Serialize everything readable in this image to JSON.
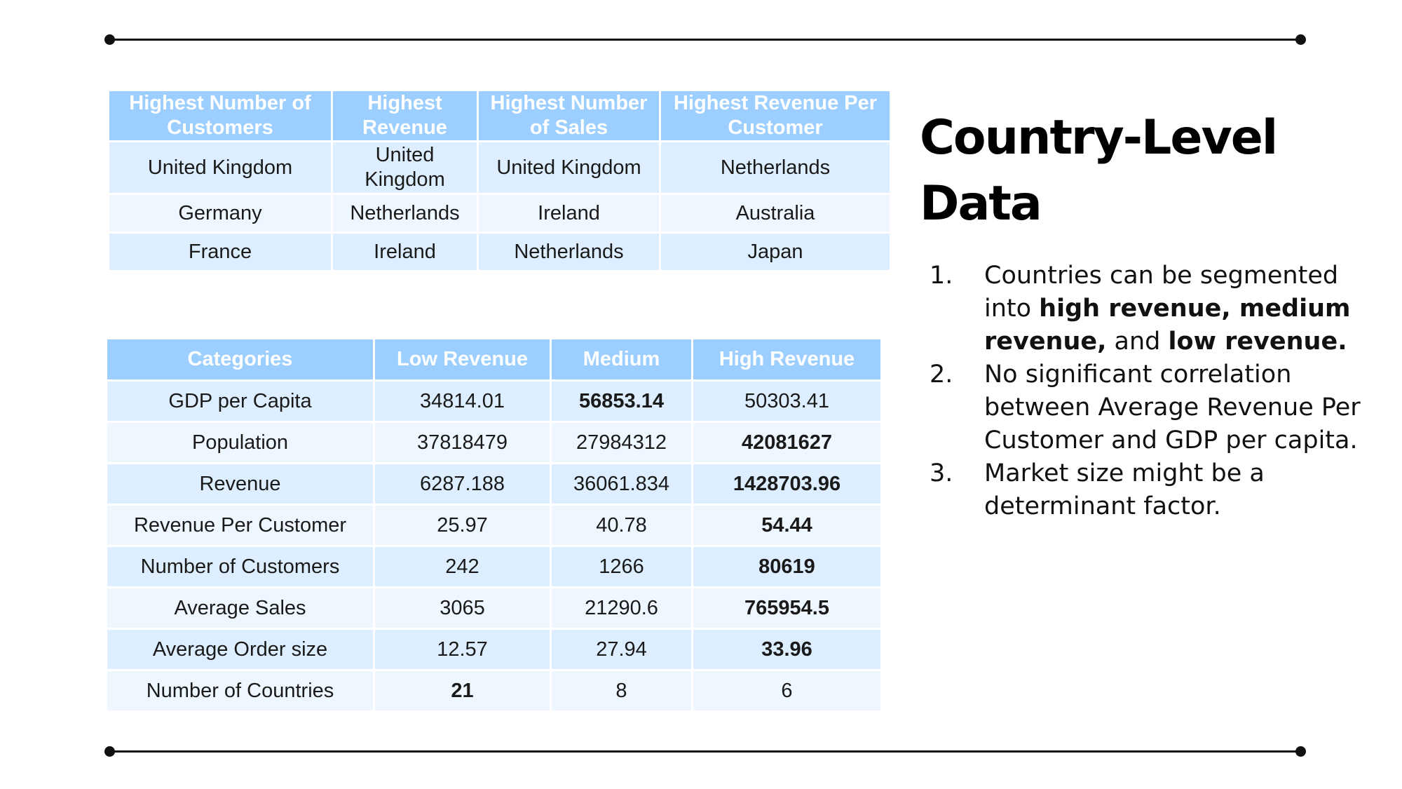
{
  "top_table": {
    "headers": [
      "Highest Number of Customers",
      "Highest Revenue",
      "Highest Number of Sales",
      "Highest Revenue Per Customer"
    ],
    "rows": [
      [
        "United Kingdom",
        "United Kingdom",
        "United Kingdom",
        "Netherlands"
      ],
      [
        "Germany",
        "Netherlands",
        "Ireland",
        "Australia"
      ],
      [
        "France",
        "Ireland",
        "Netherlands",
        "Japan"
      ]
    ]
  },
  "bottom_table": {
    "headers": [
      "Categories",
      "Low Revenue",
      "Medium",
      "High Revenue"
    ],
    "rows": [
      [
        "GDP per Capita",
        "34814.01",
        "56853.14",
        "50303.41"
      ],
      [
        "Population",
        "37818479",
        "27984312",
        "42081627"
      ],
      [
        "Revenue",
        "6287.188",
        "36061.834",
        "1428703.96"
      ],
      [
        "Revenue Per Customer",
        "25.97",
        "40.78",
        "54.44"
      ],
      [
        "Number of Customers",
        "242",
        "1266",
        "80619"
      ],
      [
        "Average Sales",
        "3065",
        "21290.6",
        "765954.5"
      ],
      [
        "Average Order size",
        "12.57",
        "27.94",
        "33.96"
      ],
      [
        "Number of Countries",
        "21",
        "8",
        "6"
      ]
    ]
  },
  "title": {
    "line1": "Country-Level",
    "line2": "Data"
  },
  "bullets": [
    {
      "num": "1.",
      "parts": [
        {
          "text": "Countries can be segmented into ",
          "bold": false
        },
        {
          "text": "high revenue, medium revenue,",
          "bold": true
        },
        {
          "text": " and ",
          "bold": false
        },
        {
          "text": "low revenue.",
          "bold": true
        }
      ]
    },
    {
      "num": "2.",
      "parts": [
        {
          "text": "No significant correlation between Average Revenue Per Customer and GDP per capita.",
          "bold": false
        }
      ]
    },
    {
      "num": "3.",
      "parts": [
        {
          "text": "Market size might be a determinant factor.",
          "bold": false
        }
      ]
    }
  ]
}
